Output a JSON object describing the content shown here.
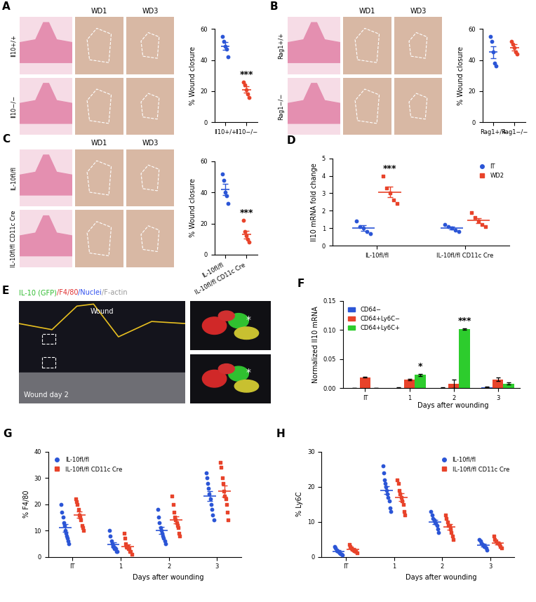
{
  "chart_data": [
    {
      "type": "scatter",
      "ylabel": "% Wound closure",
      "categories": [
        "Il10+/+",
        "Il10−/−"
      ],
      "values": [
        [
          55,
          52,
          49,
          47,
          42
        ],
        [
          26,
          24,
          21,
          18,
          16
        ]
      ],
      "means": [
        49,
        21
      ],
      "errors": [
        2.5,
        2
      ],
      "colors": [
        "#2b55d6",
        "#e8432a"
      ],
      "ylim": [
        0,
        60
      ],
      "yticks": [
        0,
        20,
        40,
        60
      ],
      "annotations": [
        {
          "category_index": 1,
          "text": "***"
        }
      ]
    },
    {
      "type": "scatter",
      "ylabel": "% Wound closure",
      "categories": [
        "Rag1+/+",
        "Rag1−/−"
      ],
      "values": [
        [
          55,
          52,
          45,
          38,
          36
        ],
        [
          52,
          50,
          48,
          45,
          44
        ]
      ],
      "means": [
        45,
        48
      ],
      "errors": [
        4,
        2
      ],
      "colors": [
        "#2b55d6",
        "#e8432a"
      ],
      "ylim": [
        0,
        60
      ],
      "yticks": [
        0,
        20,
        40,
        60
      ],
      "annotations": []
    },
    {
      "type": "scatter",
      "ylabel": "% Wound closure",
      "categories": [
        "IL-10fl/fl",
        "IL-10fl/fl CD11c Cre"
      ],
      "values": [
        [
          52,
          48,
          40,
          38,
          33
        ],
        [
          22,
          15,
          12,
          10,
          8
        ]
      ],
      "means": [
        42,
        13
      ],
      "errors": [
        3.5,
        2.5
      ],
      "colors": [
        "#2b55d6",
        "#e8432a"
      ],
      "ylim": [
        0,
        60
      ],
      "yticks": [
        0,
        20,
        40,
        60
      ],
      "annotations": [
        {
          "category_index": 1,
          "text": "***"
        }
      ]
    },
    {
      "type": "scatter",
      "panel": "D",
      "ylabel": "Il10 mRNA fold change",
      "categories": [
        "IL-10fl/fl",
        "IL-10fl/fl CD11c Cre"
      ],
      "series": [
        {
          "name": "IT",
          "color": "#2b55d6",
          "marker": "circle",
          "values": [
            [
              1.4,
              1.1,
              1.0,
              0.8,
              0.7
            ],
            [
              1.2,
              1.1,
              1.0,
              0.9,
              0.8
            ]
          ],
          "means": [
            1.0,
            1.0
          ],
          "errors": [
            0.15,
            0.08
          ]
        },
        {
          "name": "WD2",
          "color": "#e8432a",
          "marker": "square",
          "values": [
            [
              4.0,
              3.3,
              3.0,
              2.6,
              2.4
            ],
            [
              1.9,
              1.6,
              1.4,
              1.2,
              1.1
            ]
          ],
          "means": [
            3.06,
            1.44
          ],
          "errors": [
            0.3,
            0.15
          ]
        }
      ],
      "ylim": [
        0,
        5
      ],
      "yticks": [
        0,
        1,
        2,
        3,
        4,
        5
      ],
      "legend": "upper right",
      "annotations": [
        {
          "category_index": 0,
          "series": "WD2",
          "text": "***"
        }
      ]
    },
    {
      "type": "bar",
      "panel": "F",
      "ylabel": "Normalized Il10 mRNA",
      "xlabel": "Days after wounding",
      "categories": [
        "IT",
        "1",
        "2",
        "3"
      ],
      "series": [
        {
          "name": "CD64−",
          "color": "#2b55d6",
          "values": [
            0,
            0.001,
            0.001,
            0.002
          ],
          "errors": [
            0,
            0.0003,
            0.0003,
            0.0005
          ]
        },
        {
          "name": "CD64+Ly6C−",
          "color": "#e8432a",
          "values": [
            0.019,
            0.015,
            0.008,
            0.015
          ],
          "errors": [
            0.001,
            0.001,
            0.007,
            0.003
          ]
        },
        {
          "name": "CD64+Ly6C+",
          "color": "#2dcc2d",
          "values": [
            0,
            0.023,
            0.102,
            0.008
          ],
          "errors": [
            0,
            0.002,
            0.001,
            0.002
          ]
        }
      ],
      "ylim": [
        0,
        0.15
      ],
      "yticks": [
        {
          "value": 0,
          "label": "0.00"
        },
        {
          "value": 0.05,
          "label": "0.05"
        },
        {
          "value": 0.1,
          "label": "0.10"
        },
        {
          "value": 0.15,
          "label": "0.15"
        }
      ],
      "legend": "upper left",
      "annotations": [
        {
          "category_index": 1,
          "series": "CD64+Ly6C+",
          "text": "*"
        },
        {
          "category_index": 2,
          "series": "CD64+Ly6C+",
          "text": "***"
        }
      ]
    },
    {
      "type": "scatter",
      "panel": "G",
      "ylabel": "% F4/80",
      "xlabel": "Days after wounding",
      "categories": [
        "IT",
        "1",
        "2",
        "3"
      ],
      "series": [
        {
          "name": "IL-10fl/fl",
          "color": "#2b55d6",
          "marker": "circle",
          "values": [
            [
              20,
              17,
              15,
              13,
              12,
              10,
              9,
              8,
              7,
              6,
              5
            ],
            [
              10,
              8,
              6,
              5,
              4,
              4,
              3,
              3,
              2,
              2
            ],
            [
              18,
              15,
              13,
              11,
              10,
              9,
              8,
              7,
              6,
              5
            ],
            [
              32,
              30,
              28,
              26,
              24,
              22,
              20,
              18,
              16,
              14
            ]
          ],
          "means": [
            11,
            4.7,
            10,
            23
          ],
          "errors": [
            1.5,
            0.8,
            1.3,
            1.9
          ]
        },
        {
          "name": "IL-10fl/fl CD11c Cre",
          "color": "#e8432a",
          "marker": "square",
          "values": [
            [
              22,
              21,
              20,
              18,
              16,
              15,
              14,
              12,
              11,
              10
            ],
            [
              9,
              7,
              5,
              4,
              4,
              3,
              3,
              2,
              2,
              1
            ],
            [
              23,
              20,
              17,
              15,
              14,
              13,
              12,
              11,
              9,
              8
            ],
            [
              36,
              34,
              30,
              28,
              25,
              23,
              22,
              20,
              17,
              14
            ]
          ],
          "means": [
            16,
            4,
            14,
            25
          ],
          "errors": [
            1.3,
            0.8,
            1.4,
            2.2
          ]
        }
      ],
      "ylim": [
        0,
        40
      ],
      "yticks": [
        0,
        10,
        20,
        30,
        40
      ],
      "legend": "upper left",
      "annotations": []
    },
    {
      "type": "scatter",
      "panel": "H",
      "ylabel": "% Ly6C",
      "xlabel": "Days after wounding",
      "categories": [
        "IT",
        "1",
        "2",
        "3"
      ],
      "series": [
        {
          "name": "IL-10fl/fl",
          "color": "#2b55d6",
          "marker": "circle",
          "values": [
            [
              3,
              2.5,
              2,
              1.8,
              1.5,
              1.2,
              1,
              0.8,
              0.5
            ],
            [
              26,
              24,
              22,
              21,
              20,
              19,
              18,
              17,
              16,
              14,
              13
            ],
            [
              13,
              12,
              11,
              10.5,
              10,
              9.5,
              9,
              8,
              7
            ],
            [
              5,
              4.5,
              4,
              3.5,
              3,
              3,
              2.5,
              2
            ]
          ],
          "means": [
            1.6,
            19,
            10,
            3.4
          ],
          "errors": [
            0.3,
            1.1,
            0.6,
            0.4
          ]
        },
        {
          "name": "IL-10fl/fl CD11c Cre",
          "color": "#e8432a",
          "marker": "square",
          "values": [
            [
              3.5,
              3,
              2.5,
              2.2,
              2,
              1.8,
              1.5,
              1.2
            ],
            [
              22,
              21,
              19,
              18,
              17,
              16,
              15,
              13,
              12
            ],
            [
              12,
              11,
              10,
              9,
              9,
              8,
              7,
              6,
              5
            ],
            [
              6,
              5,
              4.5,
              4,
              4,
              3.5,
              3,
              2.5
            ]
          ],
          "means": [
            2.2,
            17,
            8.6,
            4
          ],
          "errors": [
            0.3,
            1.1,
            0.8,
            0.4
          ]
        }
      ],
      "ylim": [
        0,
        30
      ],
      "yticks": [
        0,
        10,
        20,
        30
      ],
      "legend": "upper right",
      "annotations": []
    }
  ],
  "images": [
    {
      "panel": "A",
      "columns": [
        "WD1",
        "WD3"
      ],
      "rows": [
        "Il10+/+",
        "Il10−/−"
      ]
    },
    {
      "panel": "B",
      "columns": [
        "WD1",
        "WD3"
      ],
      "rows": [
        "Rag1+/+",
        "Rag1−/−"
      ]
    },
    {
      "panel": "C",
      "columns": [
        "WD1",
        "WD3"
      ],
      "rows": [
        "IL-10fl/fl",
        "IL-10fl/fl CD11c Cre"
      ]
    },
    {
      "panel": "E",
      "legend_parts": [
        {
          "text": "IL-10 (GFP)",
          "color": "#2dbb2d"
        },
        {
          "text": "/F4/80",
          "color": "#e03030"
        },
        {
          "text": "/Nuclei",
          "color": "#3050ee"
        },
        {
          "text": "/F-actin",
          "color": "#999999"
        }
      ],
      "top_text": "Wound",
      "bottom_text": "Wound day 2",
      "inset_marks": [
        "*",
        "*"
      ]
    }
  ]
}
